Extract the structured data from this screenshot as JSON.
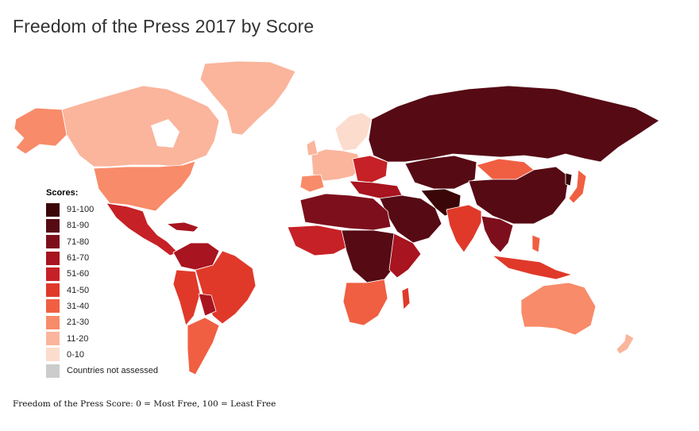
{
  "title": "Freedom of the Press 2017 by Score",
  "legend": {
    "title": "Scores:",
    "items": [
      {
        "label": "91-100",
        "color": "#3a0608"
      },
      {
        "label": "81-90",
        "color": "#560a14"
      },
      {
        "label": "71-80",
        "color": "#7d0f1c"
      },
      {
        "label": "61-70",
        "color": "#a8141f"
      },
      {
        "label": "51-60",
        "color": "#c62126"
      },
      {
        "label": "41-50",
        "color": "#e0392a"
      },
      {
        "label": "31-40",
        "color": "#f05f42"
      },
      {
        "label": "21-30",
        "color": "#f88b69"
      },
      {
        "label": "11-20",
        "color": "#fab59c"
      },
      {
        "label": "0-10",
        "color": "#fcdccc"
      },
      {
        "label": "Countries not assessed",
        "color": "#cccccc"
      }
    ]
  },
  "footnote": "Freedom of the Press Score: 0 = Most Free, 100 = Least Free"
}
